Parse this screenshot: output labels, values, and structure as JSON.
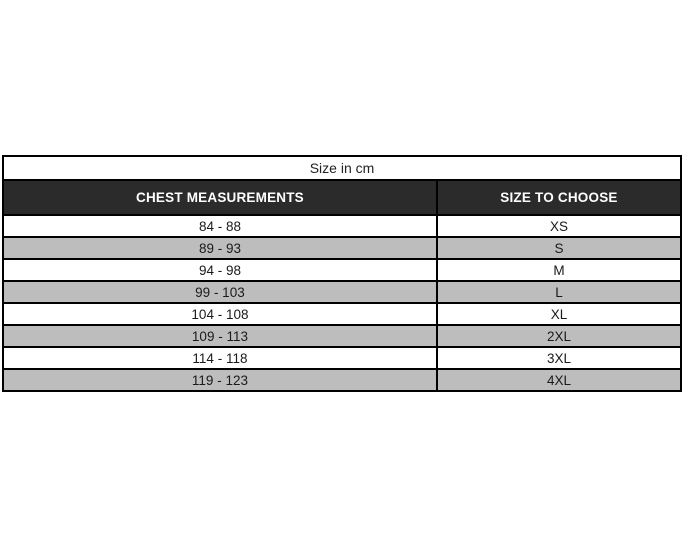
{
  "table": {
    "caption": "Size in cm",
    "columns": [
      "CHEST MEASUREMENTS",
      "SIZE TO CHOOSE"
    ],
    "rows": [
      {
        "chest": "84 - 88",
        "size": "XS"
      },
      {
        "chest": "89 - 93",
        "size": "S"
      },
      {
        "chest": "94 - 98",
        "size": "M"
      },
      {
        "chest": "99 - 103",
        "size": "L"
      },
      {
        "chest": "104 - 108",
        "size": "XL"
      },
      {
        "chest": "109 - 113",
        "size": "2XL"
      },
      {
        "chest": "114 - 118",
        "size": "3XL"
      },
      {
        "chest": "119 - 123",
        "size": "4XL"
      }
    ]
  },
  "colors": {
    "header_bg": "#2b2b2b",
    "header_text": "#ffffff",
    "row_bg": "#ffffff",
    "row_alt_bg": "#bdbdbd",
    "border": "#000000",
    "text": "#1a1a1a"
  },
  "chart_data": {
    "type": "table",
    "title": "Size in cm",
    "columns": [
      "CHEST MEASUREMENTS",
      "SIZE TO CHOOSE"
    ],
    "rows": [
      [
        "84 - 88",
        "XS"
      ],
      [
        "89 - 93",
        "S"
      ],
      [
        "94 - 98",
        "M"
      ],
      [
        "99 - 103",
        "L"
      ],
      [
        "104 - 108",
        "XL"
      ],
      [
        "109 - 113",
        "2XL"
      ],
      [
        "114 - 118",
        "3XL"
      ],
      [
        "119 - 123",
        "4XL"
      ]
    ]
  }
}
